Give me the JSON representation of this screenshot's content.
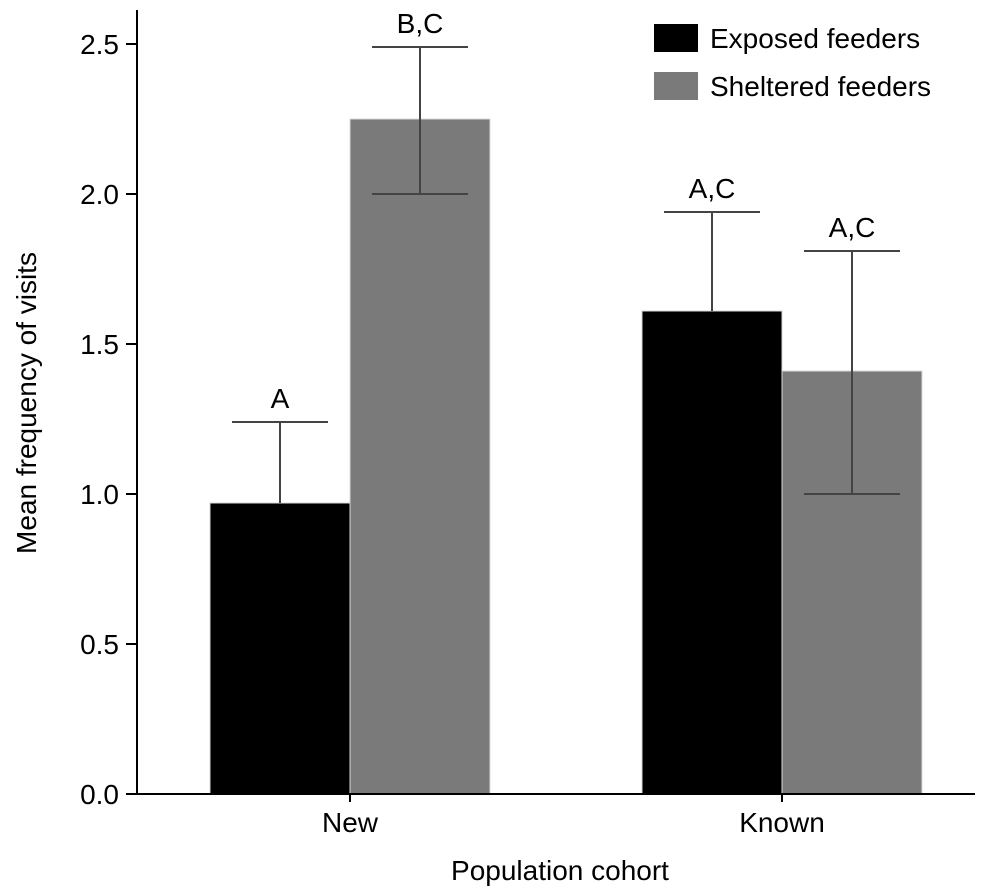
{
  "chart_data": {
    "type": "bar",
    "xlabel": "Population cohort",
    "ylabel": "Mean frequency of visits",
    "categories": [
      "New",
      "Known"
    ],
    "ylim": [
      0,
      2.6
    ],
    "yticks": [
      "0.0",
      "0.5",
      "1.0",
      "1.5",
      "2.0",
      "2.5"
    ],
    "legend_position": "top-right",
    "grid": false,
    "series": [
      {
        "name": "Exposed feeders",
        "color": "#000000",
        "values": [
          0.97,
          1.61
        ],
        "error_upper": [
          1.24,
          1.94
        ],
        "error_lower": [
          0.97,
          1.61
        ],
        "labels": [
          "A",
          "A,C"
        ]
      },
      {
        "name": "Sheltered feeders",
        "color": "#7a7a7a",
        "values": [
          2.25,
          1.41
        ],
        "error_upper": [
          2.49,
          1.81
        ],
        "error_lower": [
          2.0,
          1.0
        ],
        "labels": [
          "B,C",
          "A,C"
        ]
      }
    ]
  }
}
